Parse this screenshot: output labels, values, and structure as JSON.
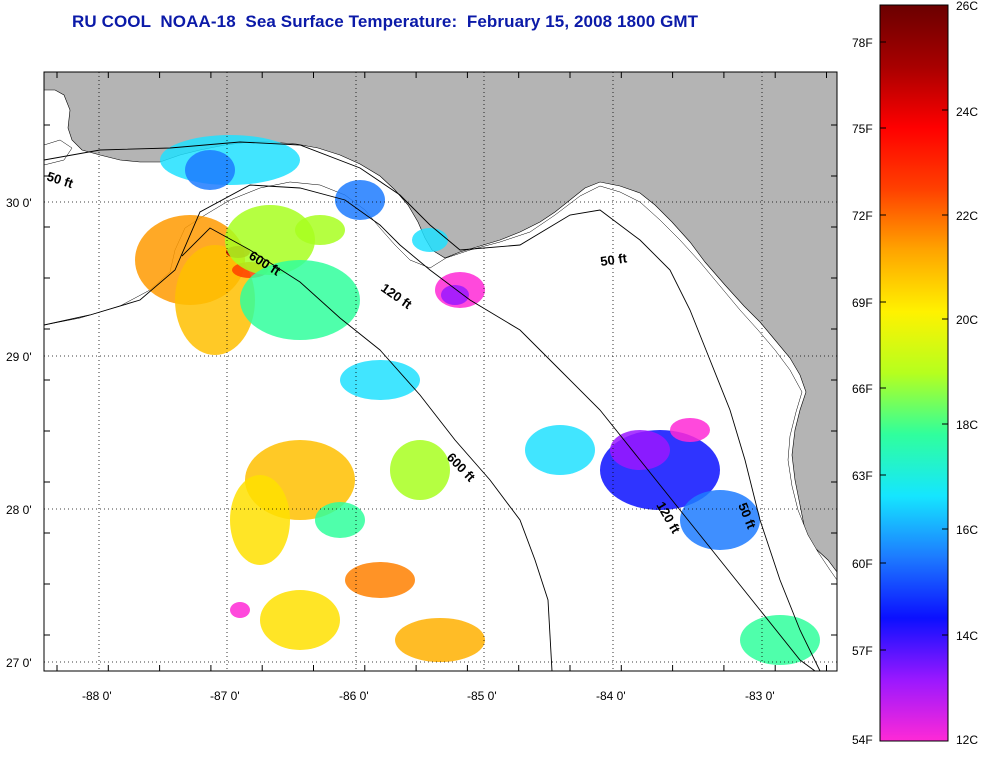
{
  "title": "RU COOL  NOAA-18  Sea Surface Temperature:  February 15, 2008 1800 GMT",
  "map": {
    "lat_labels": [
      "30 0'",
      "29 0'",
      "28 0'",
      "27 0'"
    ],
    "lon_labels": [
      "-88 0'",
      "-87 0'",
      "-86 0'",
      "-85 0'",
      "-84 0'",
      "-83 0'"
    ],
    "depth_labels": [
      "50 ft",
      "600 ft",
      "120 ft",
      "600 ft",
      "50 ft",
      "120 ft",
      "50 ft"
    ],
    "colors": {
      "land": "#b4b4b4",
      "water": "#ffffff",
      "contour": "#000000"
    }
  },
  "colorbar": {
    "fahrenheit_labels": [
      "78F",
      "75F",
      "72F",
      "69F",
      "66F",
      "63F",
      "60F",
      "57F",
      "54F"
    ],
    "celsius_labels": [
      "26C",
      "24C",
      "22C",
      "20C",
      "18C",
      "16C",
      "14C",
      "12C"
    ],
    "stops": [
      "#ff29d6",
      "#9a18ff",
      "#0b10ff",
      "#1d7bff",
      "#15e6ff",
      "#30ff9c",
      "#b6ff1e",
      "#fff200",
      "#ffa400",
      "#ff4000",
      "#ff0000",
      "#a70000",
      "#6b0000"
    ]
  }
}
